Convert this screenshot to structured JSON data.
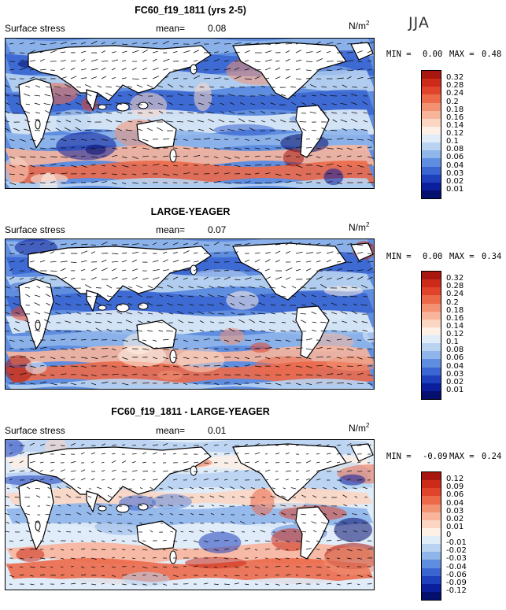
{
  "season": "JJA",
  "chart_data": [
    {
      "type": "heatmap",
      "title": "FC60_f19_1811 (yrs 2-5)",
      "field": "Surface stress",
      "mean_label": "mean=",
      "mean": "0.08",
      "units": "N/m",
      "units_exp": "2",
      "min_label": "MIN =",
      "min": "0.00",
      "max_label": "MAX =",
      "max": "0.48",
      "colorbar_levels": [
        "0.32",
        "0.28",
        "0.24",
        "0.2",
        "0.18",
        "0.16",
        "0.14",
        "0.12",
        "0.1",
        "0.08",
        "0.06",
        "0.04",
        "0.03",
        "0.02",
        "0.01"
      ],
      "colorbar_colors": [
        "#a8160f",
        "#cc2b1a",
        "#e0442a",
        "#ec6a4a",
        "#f39173",
        "#f8b59c",
        "#fbd6c3",
        "#fdf0e6",
        "#e0ecf8",
        "#b9d3f1",
        "#8fb5ea",
        "#5f8ddf",
        "#3b66d2",
        "#1f40bd",
        "#0b1e9c",
        "#050f6e"
      ]
    },
    {
      "type": "heatmap",
      "title": "LARGE-YEAGER",
      "field": "Surface stress",
      "mean_label": "mean=",
      "mean": "0.07",
      "units": "N/m",
      "units_exp": "2",
      "min_label": "MIN =",
      "min": "0.00",
      "max_label": "MAX =",
      "max": "0.34",
      "colorbar_levels": [
        "0.32",
        "0.28",
        "0.24",
        "0.2",
        "0.18",
        "0.16",
        "0.14",
        "0.12",
        "0.1",
        "0.08",
        "0.06",
        "0.04",
        "0.03",
        "0.02",
        "0.01"
      ],
      "colorbar_colors": [
        "#a8160f",
        "#cc2b1a",
        "#e0442a",
        "#ec6a4a",
        "#f39173",
        "#f8b59c",
        "#fbd6c3",
        "#fdf0e6",
        "#e0ecf8",
        "#b9d3f1",
        "#8fb5ea",
        "#5f8ddf",
        "#3b66d2",
        "#1f40bd",
        "#0b1e9c",
        "#050f6e"
      ]
    },
    {
      "type": "heatmap",
      "title": "FC60_f19_1811 - LARGE-YEAGER",
      "field": "Surface stress",
      "mean_label": "mean=",
      "mean": "0.01",
      "units": "N/m",
      "units_exp": "2",
      "min_label": "MIN =",
      "min": "-0.09",
      "max_label": "MAX =",
      "max": "0.24",
      "colorbar_levels": [
        "0.12",
        "0.09",
        "0.06",
        "0.04",
        "0.03",
        "0.02",
        "0.01",
        "0",
        "-0.01",
        "-0.02",
        "-0.03",
        "-0.04",
        "-0.06",
        "-0.09",
        "-0.12"
      ],
      "colorbar_colors": [
        "#a8160f",
        "#cc2b1a",
        "#e0442a",
        "#ec6a4a",
        "#f39173",
        "#f8b59c",
        "#fbd6c3",
        "#fdf0e6",
        "#e0ecf8",
        "#b9d3f1",
        "#8fb5ea",
        "#5f8ddf",
        "#3b66d2",
        "#1f40bd",
        "#0b1e9c",
        "#050f6e"
      ]
    }
  ]
}
